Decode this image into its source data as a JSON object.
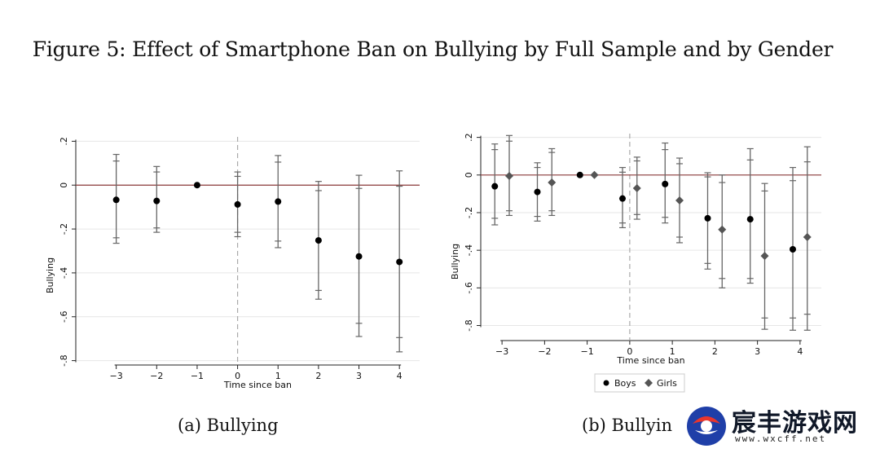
{
  "figure_title": "Figure 5: Effect of Smartphone Ban on Bullying by Full Sample and by Gender",
  "captions": {
    "a": "(a) Bullying",
    "b": "(b) Bullyin"
  },
  "watermark": {
    "name": "宸丰游戏网",
    "url": "www.wxcff.net"
  },
  "colors": {
    "zero_line": "#8b3a3a",
    "grid": "#e6e6e6",
    "boys": "#000000",
    "girls": "#555555",
    "ci": "#666666",
    "event_line": "#aaaaaa"
  },
  "chart_data": [
    {
      "type": "scatter",
      "subtype": "event-study coefficients with confidence intervals",
      "xlabel": "Time since ban",
      "ylabel": "Bullying",
      "x_ticks": [
        -3,
        -2,
        -1,
        0,
        1,
        2,
        3,
        4
      ],
      "y_ticks": [
        0.2,
        0,
        -0.2,
        -0.4,
        -0.6,
        -0.8
      ],
      "y_tick_labels": [
        ".2",
        "0",
        "-.2",
        "-.4",
        "-.6",
        "-.8"
      ],
      "xlim": [
        -4,
        4.5
      ],
      "ylim": [
        -0.82,
        0.22
      ],
      "event_line_x": 0,
      "grid": true,
      "series": [
        {
          "marker": "circle",
          "x": [
            -3,
            -2,
            -1,
            0,
            1,
            2,
            3,
            4
          ],
          "y": [
            -0.067,
            -0.072,
            0.0,
            -0.088,
            -0.075,
            -0.252,
            -0.325,
            -0.35
          ],
          "ci95_lo": [
            -0.265,
            -0.215,
            null,
            -0.235,
            -0.285,
            -0.52,
            -0.69,
            -0.76
          ],
          "ci95_hi": [
            0.14,
            0.085,
            null,
            0.06,
            0.135,
            0.017,
            0.045,
            0.065
          ],
          "ci90_lo": [
            -0.24,
            -0.195,
            null,
            -0.215,
            -0.255,
            -0.48,
            -0.63,
            -0.695
          ],
          "ci90_hi": [
            0.11,
            0.06,
            null,
            0.04,
            0.105,
            -0.025,
            -0.015,
            -0.005
          ]
        }
      ]
    },
    {
      "type": "scatter",
      "subtype": "event-study coefficients with confidence intervals",
      "xlabel": "Time since ban",
      "ylabel": "Bullying",
      "x_ticks": [
        -3,
        -2,
        -1,
        0,
        1,
        2,
        3,
        4
      ],
      "y_ticks": [
        0.2,
        0,
        -0.2,
        -0.4,
        -0.6,
        -0.8
      ],
      "y_tick_labels": [
        ".2",
        "0",
        "-.2",
        "-.4",
        "-.6",
        "-.8"
      ],
      "xlim": [
        -3.5,
        4.5
      ],
      "ylim": [
        -0.88,
        0.22
      ],
      "event_line_x": 0,
      "grid": true,
      "legend_position": "bottom",
      "series": [
        {
          "name": "Boys",
          "marker": "circle",
          "x": [
            -3.17,
            -2.17,
            -1.17,
            -0.17,
            0.83,
            1.83,
            2.83,
            3.83
          ],
          "y": [
            -0.06,
            -0.09,
            0.0,
            -0.125,
            -0.048,
            -0.23,
            -0.235,
            -0.395
          ],
          "ci95_lo": [
            -0.265,
            -0.245,
            null,
            -0.28,
            -0.255,
            -0.5,
            -0.575,
            -0.825
          ],
          "ci95_hi": [
            0.165,
            0.065,
            null,
            0.04,
            0.17,
            0.012,
            0.14,
            0.04
          ],
          "ci90_lo": [
            -0.23,
            -0.22,
            null,
            -0.255,
            -0.225,
            -0.47,
            -0.55,
            -0.76
          ],
          "ci90_hi": [
            0.135,
            0.04,
            null,
            0.015,
            0.135,
            -0.01,
            0.08,
            -0.03
          ]
        },
        {
          "name": "Girls",
          "marker": "diamond",
          "x": [
            -2.83,
            -1.83,
            -0.83,
            0.17,
            1.17,
            2.17,
            3.17,
            4.17
          ],
          "y": [
            -0.005,
            -0.04,
            0.0,
            -0.07,
            -0.135,
            -0.29,
            -0.43,
            -0.33
          ],
          "ci95_lo": [
            -0.215,
            -0.215,
            null,
            -0.235,
            -0.36,
            -0.6,
            -0.82,
            -0.825
          ],
          "ci95_hi": [
            0.21,
            0.14,
            null,
            0.095,
            0.09,
            0.0,
            -0.045,
            0.15
          ],
          "ci90_lo": [
            -0.19,
            -0.19,
            null,
            -0.21,
            -0.33,
            -0.55,
            -0.76,
            -0.74
          ],
          "ci90_hi": [
            0.18,
            0.12,
            null,
            0.075,
            0.06,
            -0.04,
            -0.085,
            0.07
          ]
        }
      ]
    }
  ]
}
